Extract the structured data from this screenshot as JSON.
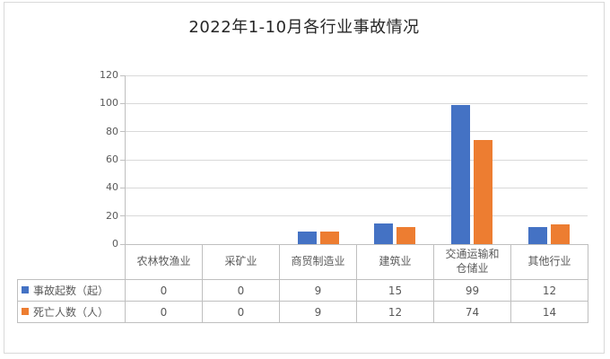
{
  "chart_data": {
    "type": "bar",
    "title": "2022年1-10月各行业事故情况",
    "categories": [
      "农林牧渔业",
      "采矿业",
      "商贸制造业",
      "建筑业",
      "交通运输和\n仓储业",
      "其他行业"
    ],
    "series": [
      {
        "name": "事故起数（起）",
        "color": "#4472C4",
        "values": [
          0,
          0,
          9,
          15,
          99,
          12
        ]
      },
      {
        "name": "死亡人数（人）",
        "color": "#ED7D31",
        "values": [
          0,
          0,
          9,
          12,
          74,
          14
        ]
      }
    ],
    "ylim": [
      0,
      120
    ],
    "yticks": [
      0,
      20,
      40,
      60,
      80,
      100,
      120
    ],
    "xlabel": "",
    "ylabel": "",
    "grid": true,
    "legend_position": "data-table-left",
    "data_table": true
  }
}
